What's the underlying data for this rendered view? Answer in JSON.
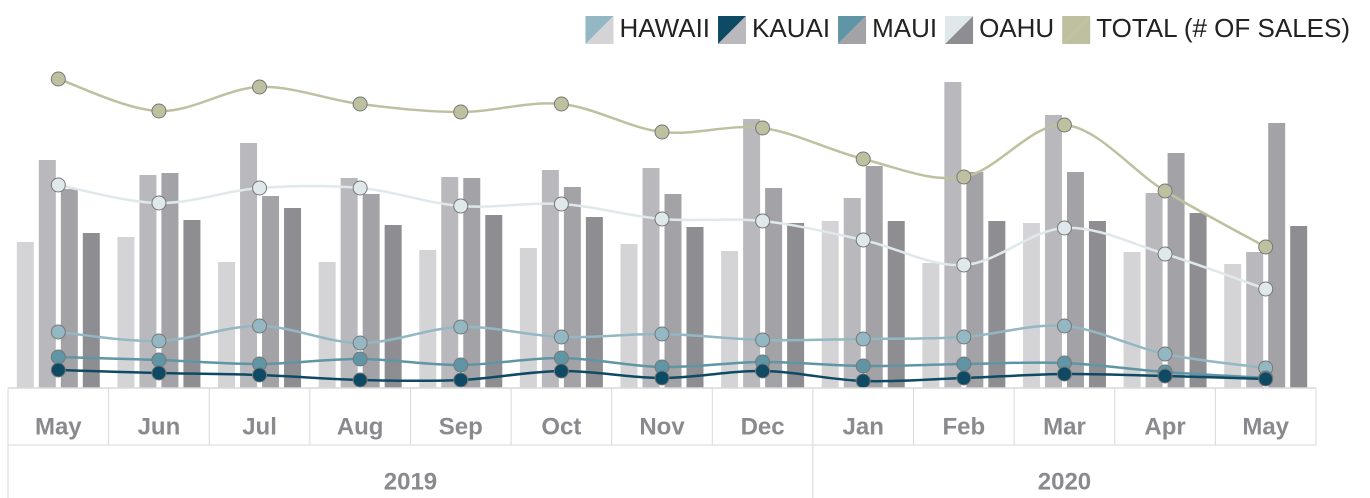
{
  "chart_data": {
    "type": "bar_line",
    "categories": [
      "May",
      "Jun",
      "Jul",
      "Aug",
      "Sep",
      "Oct",
      "Nov",
      "Dec",
      "Jan",
      "Feb",
      "Mar",
      "Apr",
      "May"
    ],
    "groups": [
      {
        "label": "2019",
        "count": 8
      },
      {
        "label": "2020",
        "count": 5
      }
    ],
    "ylim": [
      0,
      320
    ],
    "series": [
      {
        "name": "HAWAII",
        "color": "#d4d4d6",
        "line_color": "#93b7c3",
        "values": [
          146,
          151,
          126,
          126,
          138,
          140,
          144,
          137,
          167,
          125,
          165,
          136,
          124
        ],
        "line_values": [
          56,
          47,
          62,
          45,
          61,
          51,
          54,
          48,
          49,
          51,
          62,
          34,
          20
        ]
      },
      {
        "name": "KAUAI",
        "color": "#b9b9bd",
        "line_color": "#0e4a64",
        "values": [
          228,
          213,
          245,
          210,
          211,
          218,
          220,
          269,
          190,
          306,
          273,
          195,
          136
        ],
        "line_values": [
          18,
          15,
          13,
          8,
          8,
          17,
          10,
          17,
          7,
          10,
          14,
          12,
          9
        ]
      },
      {
        "name": "MAUI",
        "color": "#a3a3a7",
        "line_color": "#5f95a5",
        "values": [
          199,
          215,
          192,
          194,
          210,
          201,
          194,
          200,
          222,
          216,
          216,
          235,
          265
        ],
        "line_values": [
          31,
          28,
          24,
          29,
          23,
          30,
          21,
          26,
          22,
          24,
          25,
          16,
          10
        ]
      },
      {
        "name": "OAHU",
        "color": "#8e8e92",
        "line_color": "#dfe9eb",
        "values": [
          155,
          168,
          180,
          163,
          173,
          171,
          161,
          165,
          167,
          167,
          167,
          175,
          162
        ],
        "line_values": [
          203,
          185,
          200,
          200,
          182,
          184,
          169,
          167,
          148,
          123,
          160,
          134,
          99
        ]
      },
      {
        "name": "TOTAL (# OF SALES)",
        "line_color": "#bfc0a0",
        "line_values": [
          309,
          277,
          301,
          284,
          276,
          284,
          256,
          260,
          229,
          211,
          263,
          197,
          141
        ]
      }
    ]
  }
}
